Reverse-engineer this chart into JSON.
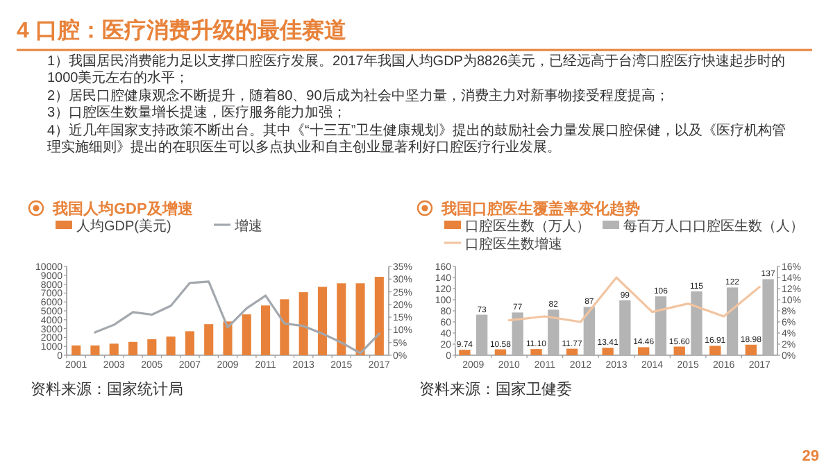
{
  "chart_data": [
    {
      "type": "other",
      "title": "4 口腔：医疗消费升级的最佳赛道",
      "annotations": [
        "1）我国居民消费能力足以支撑口腔医疗发展。2017年我国人均GDP为8826美元，已经远高于台湾口腔医疗快速起步时的1000美元左右的水平；",
        "2）居民口腔健康观念不断提升，随着80、90后成为社会中坚力量，消费主力对新事物接受程度提高；",
        "3）口腔医生数量增长提速，医疗服务能力加强；",
        "4）近几年国家支持政策不断出台。其中《“十三五”卫生健康规划》提出的鼓励社会力量发展口腔保健，以及《医疗机构管理实施细则》提出的在职医生可以多点执业和自主创业显著利好口腔医疗行业发展。",
        "29"
      ]
    },
    {
      "type": "bar",
      "title": "我国人均GDP及增速",
      "categories": [
        "2001",
        null,
        "2003",
        null,
        "2005",
        null,
        "2007",
        null,
        "2009",
        null,
        "2011",
        null,
        "2013",
        null,
        "2015",
        null,
        "2017"
      ],
      "series": [
        {
          "name": "人均GDP(美元)",
          "type": "bar",
          "color": "#e8823a",
          "values": [
            1100,
            1100,
            1300,
            1500,
            1800,
            2100,
            2700,
            3500,
            3800,
            4600,
            5600,
            6300,
            7100,
            7700,
            8100,
            8100,
            8826
          ]
        },
        {
          "name": "增速",
          "type": "line",
          "axis": "y2",
          "color": "#a3a8ae",
          "values": [
            null,
            9,
            12,
            17,
            16,
            19.5,
            28.5,
            29,
            11,
            18.5,
            23.5,
            12.5,
            11.5,
            8.5,
            5,
            0.8,
            8.5
          ]
        }
      ],
      "ylim": [
        0,
        10000
      ],
      "yticks": [
        0,
        1000,
        2000,
        3000,
        4000,
        5000,
        6000,
        7000,
        8000,
        9000,
        10000
      ],
      "y2lim": [
        0,
        35
      ],
      "y2ticks": [
        {
          "value": 0,
          "label": "0%"
        },
        {
          "value": 5,
          "label": "5%"
        },
        {
          "value": 10,
          "label": "10%"
        },
        {
          "value": 15,
          "label": "15%"
        },
        {
          "value": 20,
          "label": "20%"
        },
        {
          "value": 25,
          "label": "25%"
        },
        {
          "value": 30,
          "label": "30%"
        },
        {
          "value": 35,
          "label": "35%"
        }
      ],
      "legend": "top",
      "annotations": [
        "资料来源：国家统计局"
      ]
    },
    {
      "type": "bar",
      "title": "我国口腔医生覆盖率变化趋势",
      "categories": [
        "2009",
        "2010",
        "2011",
        "2012",
        "2013",
        "2014",
        "2015",
        "2016",
        "2017"
      ],
      "series": [
        {
          "name": "口腔医生数（万人）",
          "type": "bar",
          "color": "#e8823a",
          "values": [
            9.74,
            10.58,
            11.1,
            11.77,
            13.41,
            14.46,
            15.6,
            16.91,
            18.98
          ],
          "value_labels": [
            "9.74",
            "10.58",
            "11.10",
            "11.77",
            "13.41",
            "14.46",
            "15.60",
            "16.91",
            "18.98"
          ]
        },
        {
          "name": "每百万人口口腔医生数（人）",
          "type": "bar",
          "color": "#b4b4b4",
          "values": [
            73,
            77,
            82,
            87,
            99,
            106,
            115,
            122,
            137
          ],
          "value_labels": [
            "73",
            "77",
            "82",
            "87",
            "99",
            "106",
            "115",
            "122",
            "137"
          ]
        },
        {
          "name": "口腔医生数增速",
          "type": "line",
          "axis": "y2",
          "color": "#f2c4a0",
          "values": [
            null,
            6.3,
            7.0,
            6.0,
            14,
            7.8,
            9.3,
            7.0,
            12.3
          ]
        }
      ],
      "ylim": [
        0,
        160
      ],
      "yticks": [
        0,
        20,
        40,
        60,
        80,
        100,
        120,
        140,
        160
      ],
      "y2lim": [
        0,
        16
      ],
      "y2ticks": [
        {
          "value": 0,
          "label": "0%"
        },
        {
          "value": 2,
          "label": "2%"
        },
        {
          "value": 4,
          "label": "4%"
        },
        {
          "value": 6,
          "label": "6%"
        },
        {
          "value": 8,
          "label": "8%"
        },
        {
          "value": 10,
          "label": "10%"
        },
        {
          "value": 12,
          "label": "12%"
        },
        {
          "value": 14,
          "label": "14%"
        },
        {
          "value": 16,
          "label": "16%"
        }
      ],
      "legend": "top",
      "annotations": [
        "资料来源：国家卫健委"
      ]
    }
  ]
}
